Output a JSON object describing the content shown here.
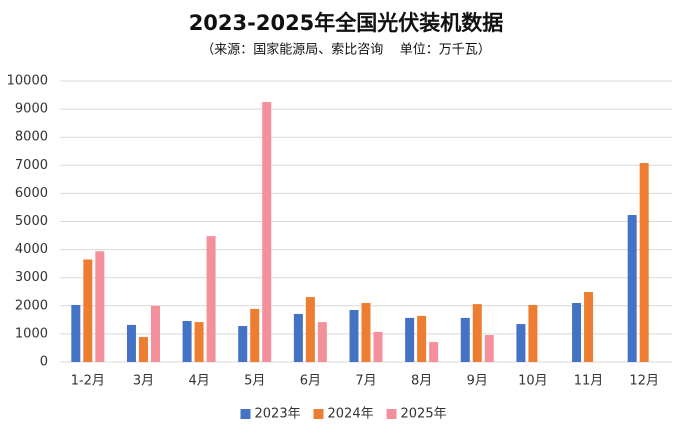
{
  "chart_data": {
    "type": "bar",
    "title": "2023-2025年全国光伏装机数据",
    "subtitle": "（来源：国家能源局、索比咨询    单位：万千瓦）",
    "categories": [
      "1-2月",
      "3月",
      "4月",
      "5月",
      "6月",
      "7月",
      "8月",
      "9月",
      "10月",
      "11月",
      "12月"
    ],
    "series": [
      {
        "name": "2023年",
        "color": "#4472c4",
        "values": [
          2030,
          1320,
          1460,
          1280,
          1710,
          1850,
          1570,
          1570,
          1350,
          2100,
          5230
        ]
      },
      {
        "name": "2024年",
        "color": "#ed7d31",
        "values": [
          3650,
          890,
          1420,
          1890,
          2310,
          2100,
          1640,
          2060,
          2030,
          2490,
          7080
        ]
      },
      {
        "name": "2025年",
        "color": "#f4909c",
        "values": [
          3940,
          2000,
          4480,
          9250,
          1420,
          1070,
          710,
          960,
          null,
          null,
          null
        ]
      }
    ],
    "ylim": [
      0,
      10000
    ],
    "yticks": [
      0,
      1000,
      2000,
      3000,
      4000,
      5000,
      6000,
      7000,
      8000,
      9000,
      10000
    ],
    "grid": true,
    "legend": "bottom"
  }
}
